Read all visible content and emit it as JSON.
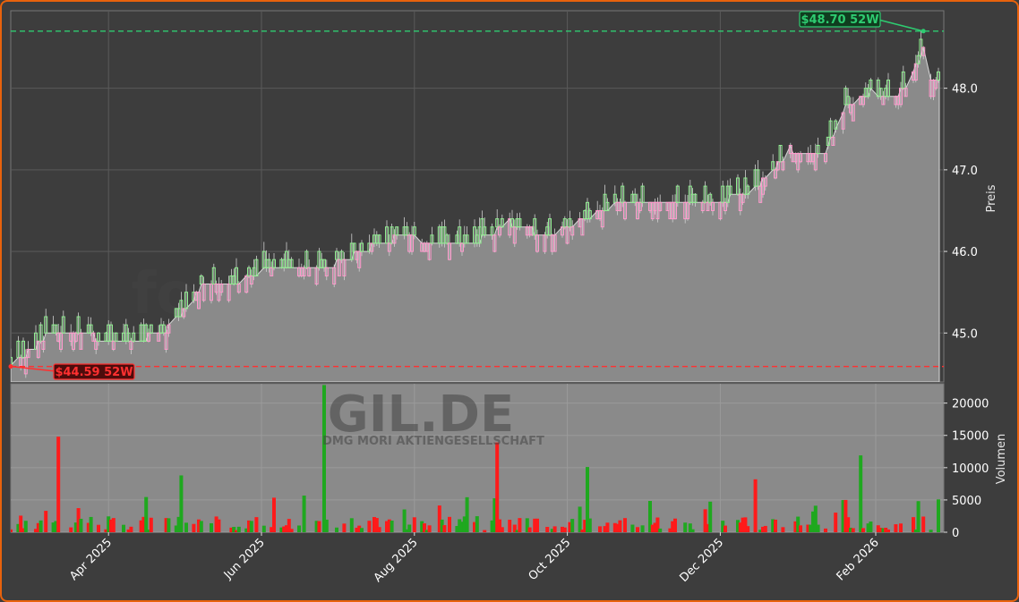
{
  "chart_data": [
    {
      "type": "candlestick",
      "title": "",
      "ylabel": "Preis",
      "ylim": [
        44.4,
        48.95
      ],
      "yticks": [
        45.0,
        46.0,
        47.0,
        48.0
      ],
      "ytick_labels": [
        "45.0",
        "46.0",
        "47.0",
        "48.0"
      ],
      "xlim": [
        "2025-02-21",
        "2026-02-26"
      ],
      "xticks": [
        "2025-04-01",
        "2025-06-01",
        "2025-08-01",
        "2025-10-01",
        "2025-12-01",
        "2026-02-01"
      ],
      "xtick_labels": [
        "Apr 2025",
        "Jun 2025",
        "Aug 2025",
        "Oct 2025",
        "Dec 2025",
        "Feb 2026"
      ],
      "grid": true,
      "close_area_color": "#8a8a8a",
      "up_color": "#90ee90",
      "down_color": "#ff99cc",
      "anchors": [
        [
          "2025-02-21",
          44.59
        ],
        [
          "2025-03-07",
          44.95
        ],
        [
          "2025-03-20",
          45.0
        ],
        [
          "2025-04-08",
          44.85
        ],
        [
          "2025-04-25",
          45.05
        ],
        [
          "2025-05-08",
          45.55
        ],
        [
          "2025-05-22",
          45.6
        ],
        [
          "2025-06-05",
          45.8
        ],
        [
          "2025-07-01",
          45.85
        ],
        [
          "2025-07-15",
          46.05
        ],
        [
          "2025-07-28",
          46.2
        ],
        [
          "2025-08-12",
          46.05
        ],
        [
          "2025-08-25",
          46.1
        ],
        [
          "2025-09-08",
          46.35
        ],
        [
          "2025-09-22",
          46.2
        ],
        [
          "2025-10-06",
          46.35
        ],
        [
          "2025-10-20",
          46.55
        ],
        [
          "2025-11-05",
          46.6
        ],
        [
          "2025-11-18",
          46.6
        ],
        [
          "2025-12-05",
          46.65
        ],
        [
          "2025-12-16",
          46.8
        ],
        [
          "2025-12-29",
          47.25
        ],
        [
          "2026-01-12",
          47.2
        ],
        [
          "2026-01-20",
          47.8
        ],
        [
          "2026-01-30",
          47.95
        ],
        [
          "2026-02-08",
          47.85
        ],
        [
          "2026-02-15",
          48.1
        ],
        [
          "2026-02-19",
          48.4
        ],
        [
          "2026-02-22",
          48.65
        ],
        [
          "2026-02-23",
          48.1
        ],
        [
          "2026-02-26",
          48.1
        ]
      ],
      "annotations": [
        {
          "label": "$48.70 52W",
          "value": 48.7,
          "date": "2026-02-20",
          "color": "#2ecc71",
          "line": "dashed"
        },
        {
          "label": "$44.59 52W",
          "value": 44.59,
          "date": "2025-02-21",
          "color": "#ff3030",
          "line": "dashed"
        }
      ]
    },
    {
      "type": "bar",
      "ylabel": "Volumen",
      "ylim": [
        0,
        23000
      ],
      "yticks": [
        0,
        5000,
        10000,
        15000,
        20000
      ],
      "ytick_labels": [
        "0",
        "5000",
        "10000",
        "15000",
        "20000"
      ],
      "up_color": "#1fa81f",
      "down_color": "#ff1a1a",
      "spikes": [
        [
          "2025-03-12",
          14800,
          "down"
        ],
        [
          "2025-06-26",
          22800,
          "up"
        ],
        [
          "2025-09-03",
          13900,
          "down"
        ],
        [
          "2025-10-09",
          10100,
          "up"
        ],
        [
          "2026-01-26",
          11900,
          "up"
        ],
        [
          "2025-05-03",
          8100,
          "down"
        ],
        [
          "2025-04-30",
          8800,
          "up"
        ],
        [
          "2025-12-15",
          8200,
          "down"
        ]
      ]
    }
  ],
  "watermark": {
    "main": "forexsignale.trade",
    "ticker": "GIL.DE",
    "company": "DMG MORI AKTIENGESELLSCHAFT"
  }
}
